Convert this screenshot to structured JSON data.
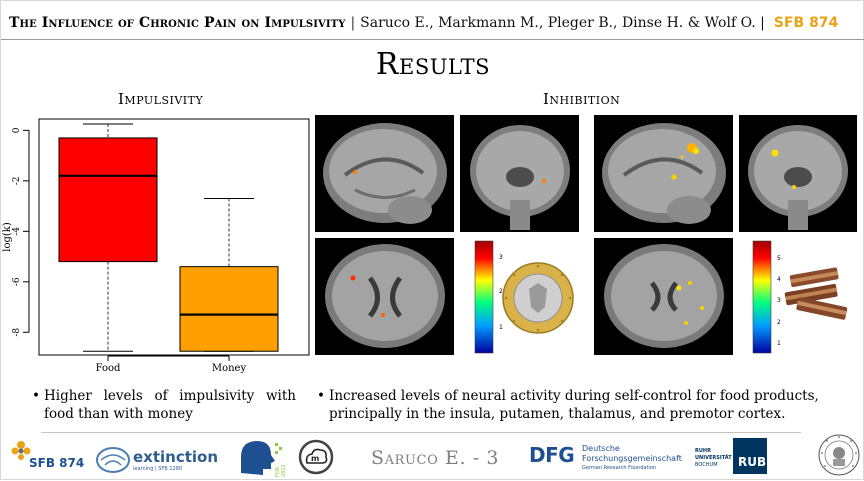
{
  "header": {
    "title": "The Influence of Chronic Pain on Impulsivity",
    "separator": "|",
    "authors": "Saruco E., Markmann M., Pleger B., Dinse H. & Wolf O. |",
    "project": "SFB 874"
  },
  "heading": "Results",
  "impulsivity": {
    "title": "Impulsivity"
  },
  "inhibition": {
    "title": "Inhibition"
  },
  "chart_data": {
    "type": "boxplot",
    "title": "",
    "xlabel": "",
    "ylabel": "log(k)",
    "categories": [
      "Food",
      "Money"
    ],
    "y_ticks": [
      "0",
      "-2",
      "-4",
      "-6",
      "-8"
    ],
    "ylim": [
      -8.9,
      0.45
    ],
    "grid": false,
    "boxes": [
      {
        "name": "Food",
        "color": "#ff0000",
        "whisker_low": -8.75,
        "q1": -5.2,
        "median": -1.8,
        "q3": -0.3,
        "whisker_high": 0.25
      },
      {
        "name": "Money",
        "color": "#ffa000",
        "whisker_low": -8.75,
        "q1": -8.75,
        "median": -7.3,
        "q3": -5.4,
        "whisker_high": -2.7
      }
    ]
  },
  "colorbars": [
    {
      "ticks": [
        "3",
        "2",
        "1"
      ]
    },
    {
      "ticks": [
        "5",
        "4",
        "3",
        "2",
        "1"
      ]
    }
  ],
  "bullets": {
    "left": "Higher levels of impulsivity with food than with money",
    "right": "Increased levels of neural activity during self-control for food products, principally in the insula, putamen, thalamus, and premotor cortex."
  },
  "footer": {
    "note": "Saruco E. - 3",
    "logos": {
      "sfb": "SFB 874",
      "extinction": "extinction",
      "extinction_sub": "learning | SFB 1280",
      "for": "FOR 2812",
      "dfg": "DFG",
      "dfg_line1": "Deutsche",
      "dfg_line2": "Forschungsgemeinschaft",
      "dfg_line3": "German Research Foundation",
      "ruhr_line1": "RUHR",
      "ruhr_line2": "UNIVERSITÄT",
      "ruhr_line3": "BOCHUM",
      "rub": "RUB"
    }
  },
  "colors": {
    "accent": "#e8a317",
    "box_food": "#ff0000",
    "box_money": "#ffa000",
    "dfg_blue": "#1d4f91"
  }
}
